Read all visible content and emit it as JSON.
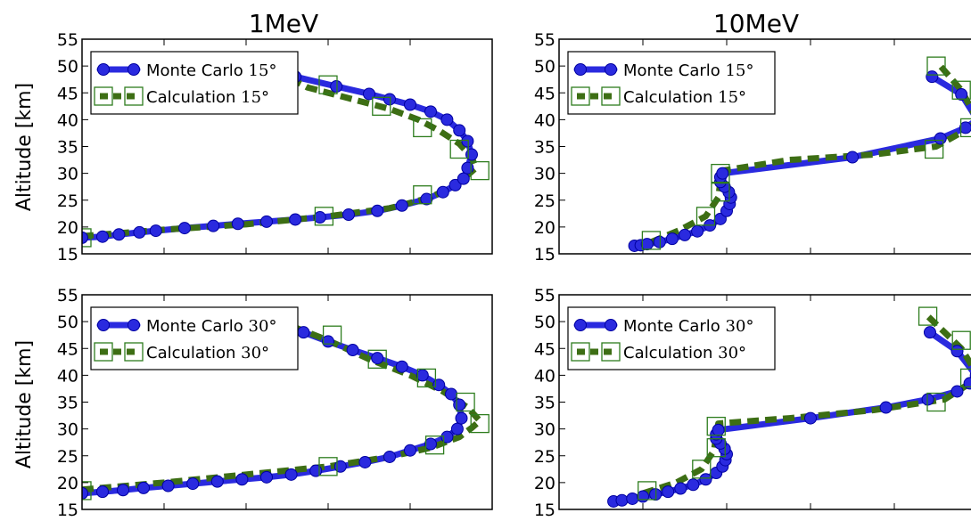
{
  "figure": {
    "column_titles": [
      "1MeV",
      "10MeV"
    ],
    "ylabel": "Altitude [km]"
  },
  "colors": {
    "monte_carlo": "#2a2adf",
    "monte_carlo_edge": "#0000a0",
    "calculation": "#3d6e14",
    "marker_square": "#2e7d1e"
  },
  "chart_data": [
    {
      "type": "line",
      "title": "1MeV",
      "ylabel": "Altitude [km]",
      "xlabel": "",
      "ylim": [
        15,
        55
      ],
      "yticks": [
        15,
        20,
        25,
        30,
        35,
        40,
        45,
        50,
        55
      ],
      "xlim": [
        0,
        100
      ],
      "x_tick_labels_shown": false,
      "legend": {
        "placement": "top-left",
        "entries": [
          {
            "label": "Monte Carlo",
            "angle": "15°"
          },
          {
            "label": "Calculation",
            "angle": "15°"
          }
        ]
      },
      "series": [
        {
          "name": "Monte Carlo 15°",
          "x": [
            0,
            5,
            9,
            14,
            18,
            25,
            32,
            38,
            45,
            52,
            58,
            65,
            72,
            78,
            84,
            88,
            91,
            93,
            94,
            95,
            94,
            92,
            89,
            85,
            80,
            75,
            70,
            62,
            52
          ],
          "y": [
            18,
            18.2,
            18.6,
            19,
            19.3,
            19.8,
            20.2,
            20.6,
            21,
            21.4,
            21.8,
            22.3,
            23,
            24,
            25.2,
            26.5,
            27.8,
            29,
            31,
            33.5,
            36,
            38,
            40,
            41.5,
            42.8,
            43.8,
            44.8,
            46.2,
            48
          ]
        },
        {
          "name": "Calculation 15°",
          "x": [
            0,
            20,
            40,
            60,
            75,
            85,
            90,
            93,
            96,
            95,
            92,
            87,
            82,
            75,
            65,
            55,
            50
          ],
          "y": [
            18.3,
            19.5,
            20.5,
            22,
            23.5,
            25.5,
            27.5,
            29,
            31,
            33,
            35.5,
            38,
            40,
            42,
            44,
            46,
            48
          ]
        }
      ],
      "markers": {
        "calculation_squares": [
          {
            "x": 0,
            "y": 18
          },
          {
            "x": 59,
            "y": 22
          },
          {
            "x": 83,
            "y": 26
          },
          {
            "x": 97,
            "y": 30.5
          },
          {
            "x": 92,
            "y": 34.5
          },
          {
            "x": 83,
            "y": 38.5
          },
          {
            "x": 73,
            "y": 42.5
          },
          {
            "x": 60,
            "y": 46.5
          }
        ]
      }
    },
    {
      "type": "line",
      "title": "10MeV",
      "ylabel": "",
      "xlabel": "",
      "ylim": [
        15,
        55
      ],
      "yticks": [
        15,
        20,
        25,
        30,
        35,
        40,
        45,
        50,
        55
      ],
      "xlim": [
        0,
        100
      ],
      "x_tick_labels_shown": false,
      "legend": {
        "placement": "top-left",
        "entries": [
          {
            "label": "Monte Carlo",
            "angle": "15°"
          },
          {
            "label": "Calculation",
            "angle": "15°"
          }
        ]
      },
      "series": [
        {
          "name": "Monte Carlo 15°",
          "x": [
            18,
            19.5,
            21,
            24,
            27,
            30,
            33,
            36,
            38.5,
            40,
            40.7,
            41,
            40.5,
            39.5,
            38.5,
            38.5,
            39,
            70,
            91,
            97,
            99.8,
            96,
            89
          ],
          "y": [
            16.5,
            16.6,
            16.8,
            17.2,
            17.8,
            18.5,
            19.2,
            20.3,
            21.5,
            23,
            24.3,
            25.5,
            26.5,
            27.5,
            28.4,
            29.3,
            30,
            33,
            36.5,
            38.5,
            40,
            44.7,
            48
          ]
        },
        {
          "name": "Calculation 15°",
          "x": [
            22,
            29,
            35,
            38,
            38.5,
            39,
            55,
            75,
            90,
            98,
            99.8,
            96,
            91
          ],
          "y": [
            17.2,
            19.5,
            22,
            25.5,
            28.5,
            30.5,
            32.5,
            33.5,
            35,
            38.5,
            40,
            45.5,
            50
          ]
        }
      ],
      "markers": {
        "calculation_squares": [
          {
            "x": 22,
            "y": 17.5
          },
          {
            "x": 35,
            "y": 22
          },
          {
            "x": 38.5,
            "y": 26.5
          },
          {
            "x": 38.5,
            "y": 30
          },
          {
            "x": 89.5,
            "y": 34.5
          },
          {
            "x": 98,
            "y": 38.5
          },
          {
            "x": 96,
            "y": 45.5
          },
          {
            "x": 90,
            "y": 50
          }
        ]
      }
    },
    {
      "type": "line",
      "title": "",
      "ylabel": "Altitude [km]",
      "xlabel": "",
      "ylim": [
        15,
        55
      ],
      "yticks": [
        15,
        20,
        25,
        30,
        35,
        40,
        45,
        50,
        55
      ],
      "xlim": [
        0,
        100
      ],
      "x_tick_labels_shown": false,
      "legend": {
        "placement": "top-left",
        "entries": [
          {
            "label": "Monte Carlo",
            "angle": "30°"
          },
          {
            "label": "Calculation",
            "angle": "30°"
          }
        ]
      },
      "series": [
        {
          "name": "Monte Carlo 30°",
          "x": [
            0,
            5,
            10,
            15,
            21,
            27,
            33,
            39,
            45,
            51,
            57,
            63,
            69,
            75,
            80,
            85,
            89,
            91.5,
            92.5,
            92,
            90,
            87,
            83,
            78,
            72,
            66,
            60,
            54
          ],
          "y": [
            18,
            18.3,
            18.6,
            19,
            19.4,
            19.8,
            20.2,
            20.6,
            21,
            21.5,
            22.2,
            23,
            23.8,
            24.8,
            26,
            27.2,
            28.5,
            30,
            32,
            34.5,
            36.5,
            38.2,
            40,
            41.6,
            43.2,
            44.7,
            46.3,
            48
          ]
        },
        {
          "name": "Calculation 30°",
          "x": [
            0,
            20,
            40,
            60,
            75,
            85,
            92,
            95,
            97,
            94,
            88,
            80,
            70,
            60,
            50
          ],
          "y": [
            18.7,
            20,
            21.5,
            23,
            24.8,
            26.5,
            28.5,
            30.2,
            31.5,
            34,
            37,
            40,
            43,
            46.5,
            49.5
          ]
        }
      ],
      "markers": {
        "calculation_squares": [
          {
            "x": 0,
            "y": 18.5
          },
          {
            "x": 60,
            "y": 23
          },
          {
            "x": 86,
            "y": 27
          },
          {
            "x": 97,
            "y": 31
          },
          {
            "x": 93.5,
            "y": 35
          },
          {
            "x": 84,
            "y": 39.5
          },
          {
            "x": 72,
            "y": 43
          },
          {
            "x": 61,
            "y": 47.5
          }
        ]
      }
    },
    {
      "type": "line",
      "title": "",
      "ylabel": "",
      "xlabel": "",
      "ylim": [
        15,
        55
      ],
      "yticks": [
        15,
        20,
        25,
        30,
        35,
        40,
        45,
        50,
        55
      ],
      "xlim": [
        0,
        100
      ],
      "x_tick_labels_shown": false,
      "legend": {
        "placement": "top-left",
        "entries": [
          {
            "label": "Monte Carlo",
            "angle": "30°"
          },
          {
            "label": "Calculation",
            "angle": "30°"
          }
        ]
      },
      "series": [
        {
          "name": "Monte Carlo 30°",
          "x": [
            13,
            15,
            17.5,
            20,
            23,
            26,
            29,
            32,
            35,
            37.5,
            39,
            39.7,
            40,
            39.5,
            38.5,
            37.5,
            37.5,
            38,
            60,
            78,
            88,
            95,
            98,
            99.5,
            95,
            88.5
          ],
          "y": [
            16.5,
            16.7,
            17,
            17.4,
            17.8,
            18.3,
            18.9,
            19.6,
            20.6,
            21.8,
            23,
            24.2,
            25.3,
            26.3,
            27.3,
            28.2,
            29,
            29.8,
            32,
            34,
            35.5,
            37,
            38.5,
            40,
            44.5,
            48
          ]
        },
        {
          "name": "Calculation 30°",
          "x": [
            20,
            28,
            34,
            37,
            37.5,
            38,
            55,
            75,
            92,
            98,
            99.5,
            96,
            88
          ],
          "y": [
            18,
            20,
            22.5,
            26,
            29,
            31,
            32,
            33.5,
            35.5,
            38.5,
            40.5,
            45,
            51
          ]
        }
      ],
      "markers": {
        "calculation_squares": [
          {
            "x": 21,
            "y": 18.5
          },
          {
            "x": 34,
            "y": 22.5
          },
          {
            "x": 37.5,
            "y": 26.5
          },
          {
            "x": 37.5,
            "y": 30.5
          },
          {
            "x": 90,
            "y": 35
          },
          {
            "x": 98,
            "y": 39.5
          },
          {
            "x": 96,
            "y": 46.5
          },
          {
            "x": 88,
            "y": 51
          }
        ]
      }
    }
  ]
}
